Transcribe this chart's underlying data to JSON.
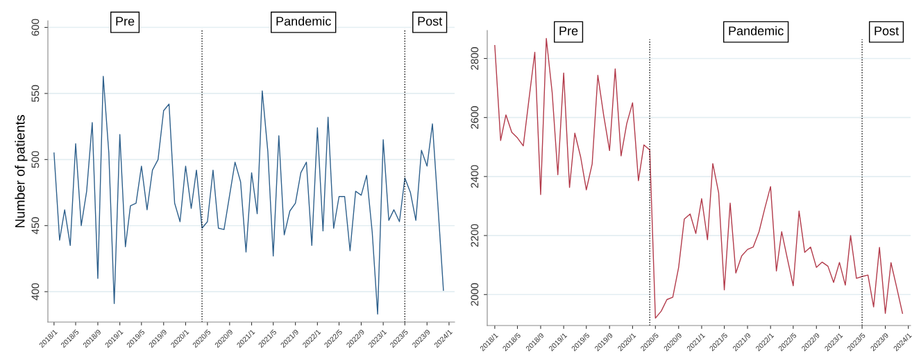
{
  "chart_data": [
    {
      "type": "line",
      "ylabel": "Number of patients",
      "x": [
        "2018-01",
        "2018-02",
        "2018-03",
        "2018-04",
        "2018-05",
        "2018-06",
        "2018-07",
        "2018-08",
        "2018-09",
        "2018-10",
        "2018-11",
        "2018-12",
        "2019-01",
        "2019-02",
        "2019-03",
        "2019-04",
        "2019-05",
        "2019-06",
        "2019-07",
        "2019-08",
        "2019-09",
        "2019-10",
        "2019-11",
        "2019-12",
        "2020-01",
        "2020-02",
        "2020-03",
        "2020-04",
        "2020-05",
        "2020-06",
        "2020-07",
        "2020-08",
        "2020-09",
        "2020-10",
        "2020-11",
        "2020-12",
        "2021-01",
        "2021-02",
        "2021-03",
        "2021-04",
        "2021-05",
        "2021-06",
        "2021-07",
        "2021-08",
        "2021-09",
        "2021-10",
        "2021-11",
        "2021-12",
        "2022-01",
        "2022-02",
        "2022-03",
        "2022-04",
        "2022-05",
        "2022-06",
        "2022-07",
        "2022-08",
        "2022-09",
        "2022-10",
        "2022-11",
        "2022-12",
        "2023-01",
        "2023-02",
        "2023-03",
        "2023-04",
        "2023-05",
        "2023-06",
        "2023-07",
        "2023-08",
        "2023-09",
        "2023-10",
        "2023-11",
        "2023-12"
      ],
      "series": [
        {
          "color": "#2d5f8b",
          "values": [
            505,
            439,
            462,
            435,
            512,
            450,
            476,
            528,
            410,
            563,
            505,
            391,
            519,
            434,
            465,
            467,
            495,
            462,
            492,
            500,
            537,
            542,
            467,
            453,
            495,
            463,
            492,
            448,
            453,
            492,
            448,
            447,
            473,
            498,
            483,
            430,
            490,
            459,
            552,
            506,
            427,
            518,
            443,
            461,
            467,
            490,
            498,
            435,
            524,
            446,
            532,
            448,
            472,
            472,
            431,
            476,
            473,
            488,
            445,
            383,
            515,
            454,
            462,
            453,
            486,
            475,
            454,
            507,
            495,
            527,
            464,
            401
          ]
        }
      ],
      "xlim": [
        "2017-11-28",
        "2024-02-01"
      ],
      "ylim": [
        377,
        605
      ],
      "xticks": [
        {
          "value": "2018-01",
          "label": "2018/1"
        },
        {
          "value": "2018-05",
          "label": "2018/5"
        },
        {
          "value": "2018-09",
          "label": "2018/9"
        },
        {
          "value": "2019-01",
          "label": "2019/1"
        },
        {
          "value": "2019-05",
          "label": "2019/5"
        },
        {
          "value": "2019-09",
          "label": "2019/9"
        },
        {
          "value": "2020-01",
          "label": "2020/1"
        },
        {
          "value": "2020-05",
          "label": "2020/5"
        },
        {
          "value": "2020-09",
          "label": "2020/9"
        },
        {
          "value": "2021-01",
          "label": "2021/1"
        },
        {
          "value": "2021-05",
          "label": "2021/5"
        },
        {
          "value": "2021-09",
          "label": "2021/9"
        },
        {
          "value": "2022-01",
          "label": "2022/1"
        },
        {
          "value": "2022-05",
          "label": "2022/5"
        },
        {
          "value": "2022-09",
          "label": "2022/9"
        },
        {
          "value": "2023-01",
          "label": "2023/1"
        },
        {
          "value": "2023-05",
          "label": "2023/5"
        },
        {
          "value": "2023-09",
          "label": "2023/9"
        },
        {
          "value": "2024-01",
          "label": "2024/1"
        }
      ],
      "yticks": [
        400,
        450,
        500,
        550,
        600
      ],
      "grid": "y",
      "ref_lines": [
        {
          "axis": "x",
          "value": "2020-04",
          "color": "#000000",
          "line_style": "dotted"
        },
        {
          "axis": "x",
          "value": "2023-05",
          "color": "#000000",
          "line_style": "dotted"
        }
      ],
      "annotations": [
        "Pre",
        "Pandemic",
        "Post"
      ]
    },
    {
      "type": "line",
      "x": [
        "2018-01",
        "2018-02",
        "2018-03",
        "2018-04",
        "2018-05",
        "2018-06",
        "2018-07",
        "2018-08",
        "2018-09",
        "2018-10",
        "2018-11",
        "2018-12",
        "2019-01",
        "2019-02",
        "2019-03",
        "2019-04",
        "2019-05",
        "2019-06",
        "2019-07",
        "2019-08",
        "2019-09",
        "2019-10",
        "2019-11",
        "2019-12",
        "2020-01",
        "2020-02",
        "2020-03",
        "2020-04",
        "2020-05",
        "2020-06",
        "2020-07",
        "2020-08",
        "2020-09",
        "2020-10",
        "2020-11",
        "2020-12",
        "2021-01",
        "2021-02",
        "2021-03",
        "2021-04",
        "2021-05",
        "2021-06",
        "2021-07",
        "2021-08",
        "2021-09",
        "2021-10",
        "2021-11",
        "2021-12",
        "2022-01",
        "2022-02",
        "2022-03",
        "2022-04",
        "2022-05",
        "2022-06",
        "2022-07",
        "2022-08",
        "2022-09",
        "2022-10",
        "2022-11",
        "2022-12",
        "2023-01",
        "2023-02",
        "2023-03",
        "2023-04",
        "2023-05",
        "2023-06",
        "2023-07",
        "2023-08",
        "2023-09",
        "2023-10",
        "2023-11",
        "2023-12"
      ],
      "series": [
        {
          "color": "#b23a4a",
          "values": [
            2844,
            2522,
            2609,
            2550,
            2531,
            2504,
            2661,
            2821,
            2339,
            2868,
            2685,
            2406,
            2751,
            2363,
            2547,
            2466,
            2355,
            2443,
            2743,
            2607,
            2488,
            2765,
            2470,
            2579,
            2650,
            2386,
            2507,
            2490,
            1920,
            1944,
            1983,
            1991,
            2092,
            2256,
            2273,
            2207,
            2325,
            2186,
            2444,
            2345,
            2016,
            2310,
            2073,
            2131,
            2153,
            2161,
            2213,
            2291,
            2366,
            2080,
            2213,
            2119,
            2030,
            2283,
            2143,
            2161,
            2092,
            2110,
            2096,
            2041,
            2109,
            2032,
            2200,
            2055,
            2061,
            2066,
            1958,
            2160,
            1936,
            2108,
            2022,
            1936
          ]
        }
      ],
      "xlim": [
        "2017-11-22",
        "2024-01-13"
      ],
      "ylim": [
        1895,
        2895
      ],
      "xticks": [
        {
          "value": "2018-01",
          "label": "2018/1"
        },
        {
          "value": "2018-05",
          "label": "2018/5"
        },
        {
          "value": "2018-09",
          "label": "2018/9"
        },
        {
          "value": "2019-01",
          "label": "2019/1"
        },
        {
          "value": "2019-05",
          "label": "2019/5"
        },
        {
          "value": "2019-09",
          "label": "2019/9"
        },
        {
          "value": "2020-01",
          "label": "2020/1"
        },
        {
          "value": "2020-05",
          "label": "2020/5"
        },
        {
          "value": "2020-09",
          "label": "2020/9"
        },
        {
          "value": "2021-01",
          "label": "2021/1"
        },
        {
          "value": "2021-05",
          "label": "2021/5"
        },
        {
          "value": "2021-09",
          "label": "2021/9"
        },
        {
          "value": "2022-01",
          "label": "2022/1"
        },
        {
          "value": "2022-05",
          "label": "2022/5"
        },
        {
          "value": "2022-09",
          "label": "2022/9"
        },
        {
          "value": "2023-01",
          "label": "2023/1"
        },
        {
          "value": "2023-05",
          "label": "2023/5"
        },
        {
          "value": "2023-09",
          "label": "2023/9"
        },
        {
          "value": "2024-01",
          "label": "2024/1"
        }
      ],
      "yticks": [
        2000,
        2200,
        2400,
        2600,
        2800
      ],
      "grid": "y",
      "ref_lines": [
        {
          "axis": "x",
          "value": "2020-04",
          "color": "#000000",
          "line_style": "dotted"
        },
        {
          "axis": "x",
          "value": "2023-05",
          "color": "#000000",
          "line_style": "dotted"
        }
      ],
      "annotations": [
        "Pre",
        "Pandemic",
        "Post"
      ]
    }
  ]
}
